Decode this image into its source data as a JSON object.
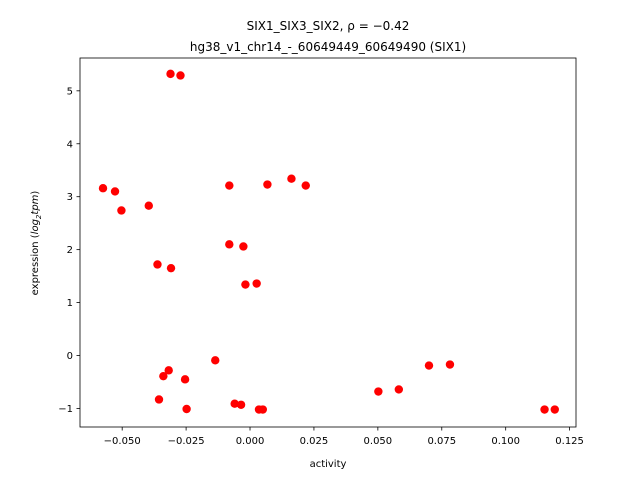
{
  "chart_data": {
    "type": "scatter",
    "title_line1": "SIX1_SIX3_SIX2, ρ = −0.42",
    "title_line2": "hg38_v1_chr14_-_60649449_60649490 (SIX1)",
    "xlabel": "activity",
    "ylabel_prefix": "expression (",
    "ylabel_math": "log",
    "ylabel_sub": "2",
    "ylabel_math2": "tpm",
    "ylabel_suffix": ")",
    "xlim": [
      -0.0665,
      0.1275
    ],
    "ylim": [
      -1.35,
      5.62
    ],
    "xticks": [
      -0.05,
      -0.025,
      0.0,
      0.025,
      0.05,
      0.075,
      0.1,
      0.125
    ],
    "xtick_labels": [
      "−0.050",
      "−0.025",
      "0.000",
      "0.025",
      "0.050",
      "0.075",
      "0.100",
      "0.125"
    ],
    "yticks": [
      -1,
      0,
      1,
      2,
      3,
      4,
      5
    ],
    "ytick_labels": [
      "−1",
      "0",
      "1",
      "2",
      "3",
      "4",
      "5"
    ],
    "grid": false,
    "marker_color": "#ff0000",
    "points": [
      {
        "x": -0.0311,
        "y": 5.32
      },
      {
        "x": -0.0272,
        "y": 5.29
      },
      {
        "x": -0.0575,
        "y": 3.16
      },
      {
        "x": -0.0528,
        "y": 3.1
      },
      {
        "x": -0.0503,
        "y": 2.74
      },
      {
        "x": -0.0396,
        "y": 2.83
      },
      {
        "x": -0.0081,
        "y": 3.21
      },
      {
        "x": 0.0068,
        "y": 3.23
      },
      {
        "x": 0.0162,
        "y": 3.34
      },
      {
        "x": 0.0218,
        "y": 3.21
      },
      {
        "x": -0.0081,
        "y": 2.1
      },
      {
        "x": -0.0026,
        "y": 2.06
      },
      {
        "x": -0.0362,
        "y": 1.72
      },
      {
        "x": -0.0309,
        "y": 1.65
      },
      {
        "x": -0.0018,
        "y": 1.34
      },
      {
        "x": 0.0026,
        "y": 1.36
      },
      {
        "x": -0.0136,
        "y": -0.09
      },
      {
        "x": -0.0318,
        "y": -0.28
      },
      {
        "x": -0.0339,
        "y": -0.39
      },
      {
        "x": -0.0254,
        "y": -0.45
      },
      {
        "x": -0.0356,
        "y": -0.83
      },
      {
        "x": -0.0248,
        "y": -1.01
      },
      {
        "x": -0.006,
        "y": -0.91
      },
      {
        "x": -0.0035,
        "y": -0.93
      },
      {
        "x": 0.0035,
        "y": -1.02
      },
      {
        "x": 0.005,
        "y": -1.02
      },
      {
        "x": 0.0502,
        "y": -0.68
      },
      {
        "x": 0.0582,
        "y": -0.64
      },
      {
        "x": 0.07,
        "y": -0.19
      },
      {
        "x": 0.0782,
        "y": -0.17
      },
      {
        "x": 0.1152,
        "y": -1.02
      },
      {
        "x": 0.1192,
        "y": -1.02
      }
    ]
  }
}
